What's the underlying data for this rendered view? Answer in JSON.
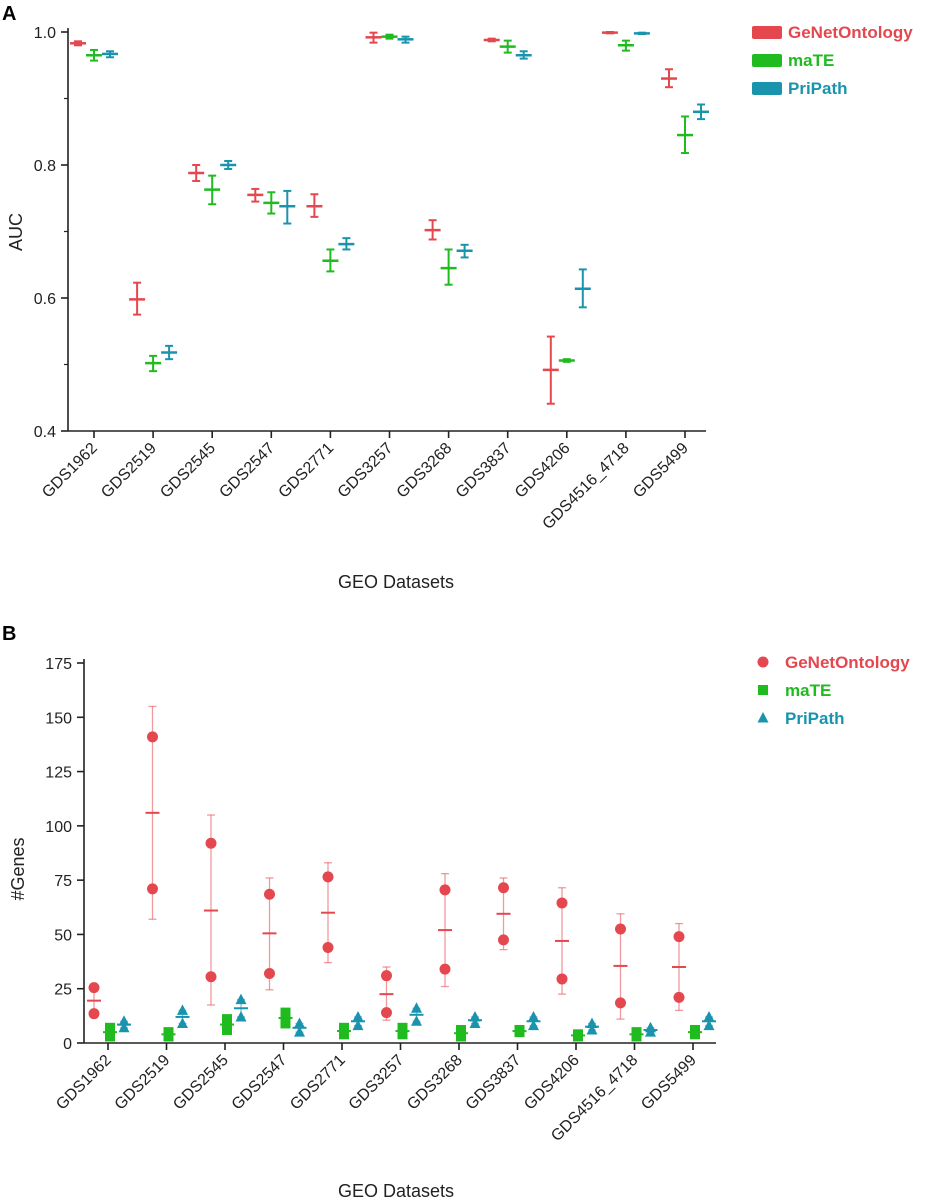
{
  "colors": {
    "GeNetOntology": "#e5474f",
    "maTE": "#1fbb1f",
    "PriPath": "#1a94ad",
    "axis": "#222222"
  },
  "chart_data": [
    {
      "panel": "A",
      "type": "scatter",
      "xlabel": "GEO Datasets",
      "ylabel": "AUC",
      "ylim": [
        0.4,
        1.0
      ],
      "yticks": [
        "0.4",
        "0.6",
        "0.8",
        "1.0"
      ],
      "categories": [
        "GDS1962",
        "GDS2519",
        "GDS2545",
        "GDS2547",
        "GDS2771",
        "GDS3257",
        "GDS3268",
        "GDS3837",
        "GDS4206",
        "GDS4516_4718",
        "GDS5499"
      ],
      "legend": [
        "GeNetOntology",
        "maTE",
        "PriPath"
      ],
      "series": [
        {
          "name": "GeNetOntology",
          "color": "#e5474f",
          "mean": [
            0.983,
            0.598,
            0.788,
            0.755,
            0.738,
            0.992,
            0.702,
            0.988,
            0.492,
            0.999,
            0.93
          ],
          "low": [
            0.98,
            0.575,
            0.776,
            0.745,
            0.722,
            0.984,
            0.688,
            0.986,
            0.441,
            0.998,
            0.917
          ],
          "high": [
            0.986,
            0.623,
            0.8,
            0.764,
            0.756,
            0.999,
            0.717,
            0.99,
            0.542,
            1.0,
            0.944
          ]
        },
        {
          "name": "maTE",
          "color": "#1fbb1f",
          "mean": [
            0.965,
            0.502,
            0.763,
            0.743,
            0.656,
            0.993,
            0.645,
            0.978,
            0.506,
            0.98,
            0.845
          ],
          "low": [
            0.957,
            0.49,
            0.741,
            0.727,
            0.64,
            0.99,
            0.62,
            0.969,
            0.504,
            0.972,
            0.818
          ],
          "high": [
            0.973,
            0.513,
            0.784,
            0.759,
            0.673,
            0.996,
            0.673,
            0.987,
            0.508,
            0.987,
            0.873
          ]
        },
        {
          "name": "PriPath",
          "color": "#1a94ad",
          "mean": [
            0.967,
            0.518,
            0.8,
            0.738,
            0.681,
            0.989,
            0.671,
            0.965,
            0.614,
            0.998,
            0.88
          ],
          "low": [
            0.962,
            0.508,
            0.794,
            0.712,
            0.673,
            0.984,
            0.661,
            0.96,
            0.586,
            0.997,
            0.869
          ],
          "high": [
            0.971,
            0.528,
            0.806,
            0.761,
            0.69,
            0.993,
            0.68,
            0.971,
            0.643,
            0.999,
            0.891
          ]
        }
      ]
    },
    {
      "panel": "B",
      "type": "scatter",
      "xlabel": "GEO Datasets",
      "ylabel": "#Genes",
      "ylim": [
        0,
        175
      ],
      "yticks": [
        "0",
        "25",
        "50",
        "75",
        "100",
        "125",
        "150",
        "175"
      ],
      "categories": [
        "GDS1962",
        "GDS2519",
        "GDS2545",
        "GDS2547",
        "GDS2771",
        "GDS3257",
        "GDS3268",
        "GDS3837",
        "GDS4206",
        "GDS4516_4718",
        "GDS5499"
      ],
      "legend": [
        "GeNetOntology",
        "maTE",
        "PriPath"
      ],
      "series": [
        {
          "name": "GeNetOntology",
          "marker": "circle",
          "color": "#e5474f",
          "points": [
            [
              25.5,
              13.5
            ],
            [
              141,
              71
            ],
            [
              92,
              30.5
            ],
            [
              68.5,
              32
            ],
            [
              76.5,
              44
            ],
            [
              31,
              14
            ],
            [
              70.5,
              34
            ],
            [
              71.5,
              47.5
            ],
            [
              64.5,
              29.5
            ],
            [
              52.5,
              18.5
            ],
            [
              49,
              21
            ]
          ],
          "mean": [
            19.5,
            106,
            61,
            50.5,
            60,
            22.5,
            52,
            59.5,
            47,
            35.5,
            35
          ],
          "low": [
            13,
            57,
            17.5,
            24.5,
            37,
            10.5,
            26,
            43,
            22.5,
            11,
            15
          ],
          "high": [
            26,
            155,
            105,
            76,
            83,
            35,
            78,
            76,
            71.5,
            59.5,
            55
          ]
        },
        {
          "name": "maTE",
          "marker": "square",
          "color": "#1fbb1f",
          "points": [
            [
              7,
              3
            ],
            [
              5,
              3
            ],
            [
              11,
              6
            ],
            [
              14,
              9
            ],
            [
              7,
              4
            ],
            [
              7,
              4
            ],
            [
              6,
              3
            ],
            [
              6,
              5
            ],
            [
              4,
              3
            ],
            [
              5,
              3
            ],
            [
              6,
              4
            ]
          ],
          "mean": [
            5,
            4,
            8.5,
            11.5,
            5.5,
            5.5,
            4.5,
            5.5,
            3.5,
            4,
            5
          ],
          "low": [
            3,
            3,
            6,
            9,
            4,
            4,
            3,
            5,
            3,
            3,
            4
          ],
          "high": [
            7,
            5,
            11,
            14,
            7,
            7,
            6,
            6,
            4,
            5,
            6
          ]
        },
        {
          "name": "PriPath",
          "marker": "triangle",
          "color": "#1a94ad",
          "points": [
            [
              10,
              7
            ],
            [
              15,
              9
            ],
            [
              20,
              12
            ],
            [
              9,
              5
            ],
            [
              12,
              8
            ],
            [
              16,
              10
            ],
            [
              12,
              9
            ],
            [
              12,
              8
            ],
            [
              9,
              6
            ],
            [
              7,
              5
            ],
            [
              12,
              8
            ]
          ],
          "mean": [
            8.5,
            12,
            16,
            7,
            10,
            13,
            10.5,
            10,
            7.5,
            6,
            10
          ],
          "low": [
            7,
            9,
            12,
            5,
            8,
            10,
            9,
            8,
            6,
            5,
            8
          ],
          "high": [
            10,
            15,
            20,
            9,
            12,
            16,
            12,
            12,
            9,
            7,
            12
          ]
        }
      ]
    }
  ]
}
